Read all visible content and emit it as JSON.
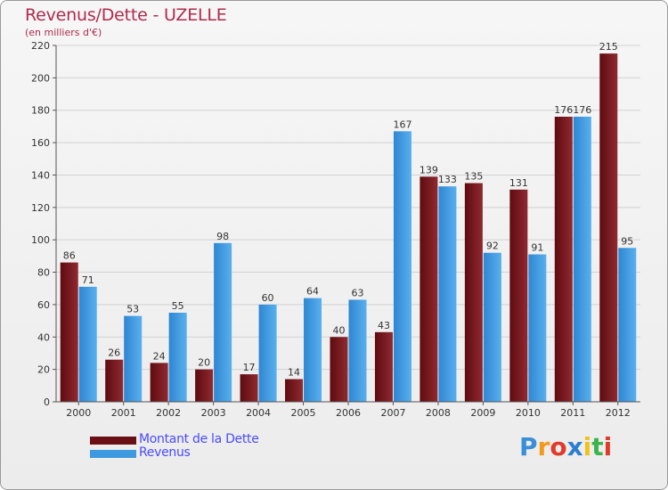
{
  "header": {
    "title": "Revenus/Dette - UZELLE",
    "subtitle": "(en milliers d'€)"
  },
  "chart_data": {
    "type": "bar",
    "title": "Revenus/Dette - UZELLE",
    "subtitle": "(en milliers d'€)",
    "categories": [
      "2000",
      "2001",
      "2002",
      "2003",
      "2004",
      "2005",
      "2006",
      "2007",
      "2008",
      "2009",
      "2010",
      "2011",
      "2012"
    ],
    "series": [
      {
        "name": "Montant de la Dette",
        "color": "#7a1a1f",
        "values": [
          86,
          26,
          24,
          20,
          17,
          14,
          40,
          43,
          139,
          135,
          131,
          176,
          215
        ]
      },
      {
        "name": "Revenus",
        "color": "#3d9ae0",
        "values": [
          71,
          53,
          55,
          98,
          60,
          64,
          63,
          167,
          133,
          92,
          91,
          176,
          95
        ]
      }
    ],
    "ylim": [
      0,
      220
    ],
    "yticks": [
      0,
      20,
      40,
      60,
      80,
      100,
      120,
      140,
      160,
      180,
      200,
      220
    ],
    "grid": true,
    "legend": "bottom-left",
    "data_labels": true
  },
  "legend": {
    "items": [
      {
        "label": "Montant de la Dette",
        "color": "#6a0f14"
      },
      {
        "label": "Revenus",
        "color": "#3d9ae0"
      }
    ]
  },
  "brand": {
    "letters": [
      "P",
      "r",
      "o",
      "x",
      "i",
      "t",
      "i"
    ],
    "colors": [
      "#3a8fd8",
      "#f39a1c",
      "#e23a2a",
      "#2b7fd0",
      "#f2c21a",
      "#3bb54a",
      "#e23a2a"
    ]
  }
}
